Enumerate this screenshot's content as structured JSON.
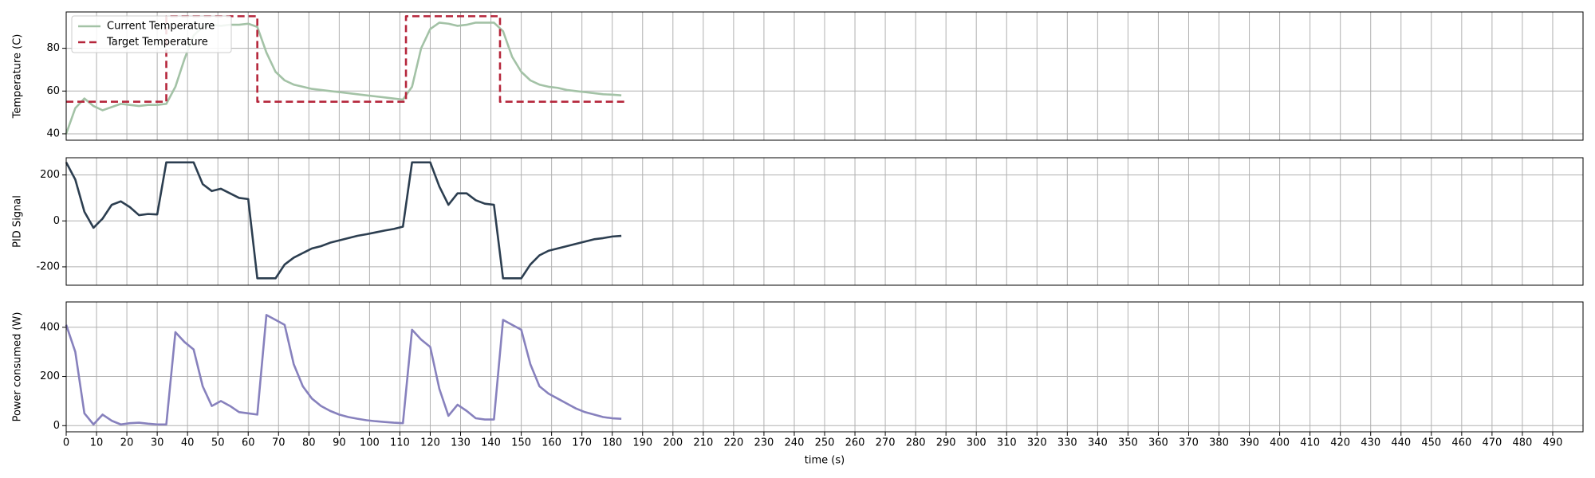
{
  "chart_data": [
    {
      "type": "line",
      "ylabel": "Temperature (C)",
      "x": [
        0,
        3,
        6,
        9,
        12,
        15,
        18,
        21,
        24,
        27,
        30,
        33,
        36,
        39,
        42,
        45,
        48,
        51,
        54,
        57,
        60,
        63,
        66,
        69,
        72,
        75,
        78,
        81,
        84,
        87,
        90,
        93,
        96,
        99,
        102,
        105,
        108,
        111,
        114,
        117,
        120,
        123,
        126,
        129,
        132,
        135,
        138,
        141,
        144,
        147,
        150,
        153,
        156,
        159,
        162,
        165,
        168,
        171,
        174,
        177,
        180,
        183
      ],
      "series": [
        {
          "name": "Current Temperature",
          "color": "#a3c2a6",
          "style": "solid",
          "values": [
            40,
            52,
            56.5,
            53,
            51,
            52.5,
            54,
            53.5,
            53,
            53.5,
            53.5,
            54,
            62,
            75,
            86,
            90,
            91,
            90.5,
            91,
            91,
            91.5,
            90,
            78,
            69,
            65,
            63,
            62,
            61,
            60.5,
            60,
            59.5,
            59,
            58.5,
            58,
            57.5,
            57,
            56.5,
            56,
            62,
            80,
            89,
            92,
            91.5,
            90.5,
            91,
            92,
            92,
            92,
            88,
            76,
            69,
            65,
            63,
            62,
            61.5,
            60.5,
            60,
            59.5,
            59,
            58.5,
            58.3,
            58
          ]
        },
        {
          "name": "Target Temperature",
          "color": "#b5263b",
          "style": "dashed",
          "x": [
            0,
            33,
            33,
            63,
            63,
            112,
            112,
            143,
            143,
            184
          ],
          "values": [
            55,
            55,
            95,
            95,
            55,
            55,
            95,
            95,
            55,
            55
          ]
        }
      ],
      "xlim": [
        0,
        500
      ],
      "ylim": [
        37,
        97
      ],
      "yticks": [
        40,
        60,
        80
      ],
      "grid": true,
      "legend": "upper left"
    },
    {
      "type": "line",
      "ylabel": "PID Signal",
      "x": [
        0,
        3,
        6,
        9,
        12,
        15,
        18,
        21,
        24,
        27,
        30,
        33,
        36,
        39,
        42,
        45,
        48,
        51,
        54,
        57,
        60,
        63,
        66,
        69,
        72,
        75,
        78,
        81,
        84,
        87,
        90,
        93,
        96,
        99,
        102,
        105,
        108,
        111,
        114,
        117,
        120,
        123,
        126,
        129,
        132,
        135,
        138,
        141,
        144,
        147,
        150,
        153,
        156,
        159,
        162,
        165,
        168,
        171,
        174,
        177,
        180,
        183
      ],
      "series": [
        {
          "color": "#2c3e50",
          "style": "solid",
          "values": [
            255,
            180,
            40,
            -30,
            10,
            70,
            85,
            60,
            25,
            30,
            28,
            255,
            255,
            255,
            255,
            160,
            130,
            140,
            120,
            100,
            95,
            -250,
            -250,
            -250,
            -190,
            -160,
            -140,
            -120,
            -110,
            -95,
            -85,
            -75,
            -65,
            -58,
            -50,
            -42,
            -35,
            -25,
            255,
            255,
            255,
            150,
            70,
            120,
            120,
            90,
            75,
            70,
            -250,
            -250,
            -250,
            -190,
            -150,
            -130,
            -120,
            -110,
            -100,
            -90,
            -80,
            -75,
            -68,
            -65
          ]
        }
      ],
      "xlim": [
        0,
        500
      ],
      "ylim": [
        -280,
        275
      ],
      "yticks": [
        -200,
        0,
        200
      ],
      "grid": true
    },
    {
      "type": "line",
      "ylabel": "Power consumed (W)",
      "xlabel": "time (s)",
      "x": [
        0,
        3,
        6,
        9,
        12,
        15,
        18,
        21,
        24,
        27,
        30,
        33,
        36,
        39,
        42,
        45,
        48,
        51,
        54,
        57,
        60,
        63,
        66,
        69,
        72,
        75,
        78,
        81,
        84,
        87,
        90,
        93,
        96,
        99,
        102,
        105,
        108,
        111,
        114,
        117,
        120,
        123,
        126,
        129,
        132,
        135,
        138,
        141,
        144,
        147,
        150,
        153,
        156,
        159,
        162,
        165,
        168,
        171,
        174,
        177,
        180,
        183
      ],
      "series": [
        {
          "color": "#8781bd",
          "style": "solid",
          "values": [
            410,
            300,
            50,
            5,
            45,
            20,
            5,
            10,
            12,
            8,
            5,
            5,
            380,
            340,
            310,
            160,
            80,
            100,
            80,
            55,
            50,
            45,
            450,
            430,
            410,
            250,
            160,
            110,
            80,
            60,
            45,
            35,
            28,
            22,
            18,
            15,
            12,
            10,
            390,
            350,
            320,
            150,
            40,
            85,
            60,
            30,
            25,
            25,
            430,
            410,
            390,
            250,
            160,
            130,
            110,
            90,
            70,
            55,
            45,
            35,
            30,
            28
          ]
        }
      ],
      "xlim": [
        0,
        500
      ],
      "ylim": [
        -25,
        503
      ],
      "yticks": [
        0,
        200,
        400
      ],
      "xticks": [
        0,
        10,
        20,
        30,
        40,
        50,
        60,
        70,
        80,
        90,
        100,
        110,
        120,
        130,
        140,
        150,
        160,
        170,
        180,
        190,
        200,
        210,
        220,
        230,
        240,
        250,
        260,
        270,
        280,
        290,
        300,
        310,
        320,
        330,
        340,
        350,
        360,
        370,
        380,
        390,
        400,
        410,
        420,
        430,
        440,
        450,
        460,
        470,
        480,
        490
      ],
      "grid": true
    }
  ]
}
